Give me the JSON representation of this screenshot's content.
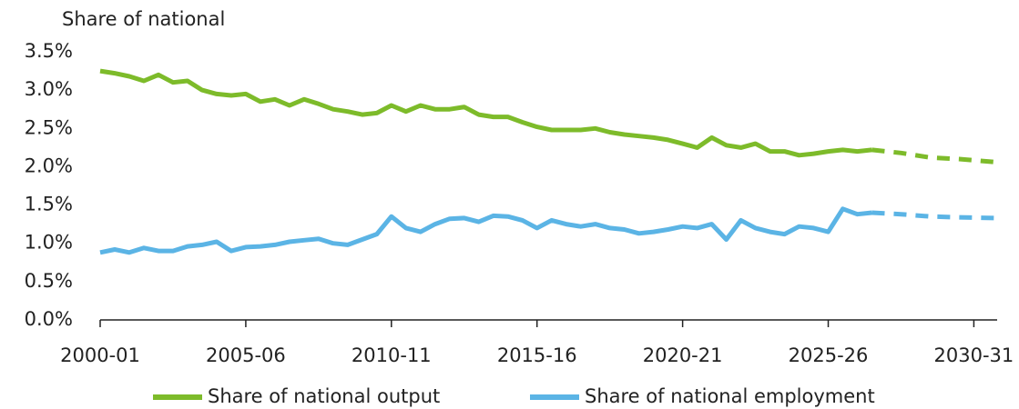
{
  "chart_data": {
    "type": "line",
    "y_axis_label": "Share of national",
    "x": [
      2000,
      2000.5,
      2001,
      2001.5,
      2002,
      2002.5,
      2003,
      2003.5,
      2004,
      2004.5,
      2005,
      2005.5,
      2006,
      2006.5,
      2007,
      2007.5,
      2008,
      2008.5,
      2009,
      2009.5,
      2010,
      2010.5,
      2011,
      2011.5,
      2012,
      2012.5,
      2013,
      2013.5,
      2014,
      2014.5,
      2015,
      2015.5,
      2016,
      2016.5,
      2017,
      2017.5,
      2018,
      2018.5,
      2019,
      2019.5,
      2020,
      2020.5,
      2021,
      2021.5,
      2022,
      2022.5,
      2023,
      2023.5,
      2024,
      2024.5,
      2025,
      2025.5,
      2026,
      2026.5,
      2027.5,
      2028.5,
      2029.5,
      2030.75
    ],
    "series": [
      {
        "name": "Share of national output",
        "color": "#7dbb2a",
        "values": [
          3.25,
          3.22,
          3.18,
          3.12,
          3.2,
          3.1,
          3.12,
          3.0,
          2.95,
          2.93,
          2.95,
          2.85,
          2.88,
          2.8,
          2.88,
          2.82,
          2.75,
          2.72,
          2.68,
          2.7,
          2.8,
          2.72,
          2.8,
          2.75,
          2.75,
          2.78,
          2.68,
          2.65,
          2.65,
          2.58,
          2.52,
          2.48,
          2.48,
          2.48,
          2.5,
          2.45,
          2.42,
          2.4,
          2.38,
          2.35,
          2.3,
          2.25,
          2.38,
          2.28,
          2.25,
          2.3,
          2.2,
          2.2,
          2.15,
          2.17,
          2.2,
          2.22,
          2.2,
          2.22,
          2.18,
          2.12,
          2.1,
          2.06
        ]
      },
      {
        "name": "Share of national employment",
        "color": "#5bb4e5",
        "values": [
          0.88,
          0.92,
          0.88,
          0.94,
          0.9,
          0.9,
          0.96,
          0.98,
          1.02,
          0.9,
          0.95,
          0.96,
          0.98,
          1.02,
          1.04,
          1.06,
          1.0,
          0.98,
          1.05,
          1.12,
          1.35,
          1.2,
          1.15,
          1.25,
          1.32,
          1.33,
          1.28,
          1.36,
          1.35,
          1.3,
          1.2,
          1.3,
          1.25,
          1.22,
          1.25,
          1.2,
          1.18,
          1.13,
          1.15,
          1.18,
          1.22,
          1.2,
          1.25,
          1.05,
          1.3,
          1.2,
          1.15,
          1.12,
          1.22,
          1.2,
          1.15,
          1.45,
          1.38,
          1.4,
          1.38,
          1.35,
          1.34,
          1.33
        ]
      }
    ],
    "dashed_from": 2026.5,
    "xlim": [
      2000,
      2030.8
    ],
    "xticks": [
      {
        "value": 2000,
        "label": "2000-01"
      },
      {
        "value": 2005,
        "label": "2005-06"
      },
      {
        "value": 2010,
        "label": "2010-11"
      },
      {
        "value": 2015,
        "label": "2015-16"
      },
      {
        "value": 2020,
        "label": "2020-21"
      },
      {
        "value": 2025,
        "label": "2025-26"
      },
      {
        "value": 2030,
        "label": "2030-31"
      }
    ],
    "ylim": [
      0,
      3.5
    ],
    "yticks": [
      {
        "value": 0,
        "label": "0.0%"
      },
      {
        "value": 0.5,
        "label": "0.5%"
      },
      {
        "value": 1,
        "label": "1.0%"
      },
      {
        "value": 1.5,
        "label": "1.5%"
      },
      {
        "value": 2,
        "label": "2.0%"
      },
      {
        "value": 2.5,
        "label": "2.5%"
      },
      {
        "value": 3,
        "label": "3.0%"
      },
      {
        "value": 3.5,
        "label": "3.5%"
      }
    ],
    "legend": "bottom"
  }
}
